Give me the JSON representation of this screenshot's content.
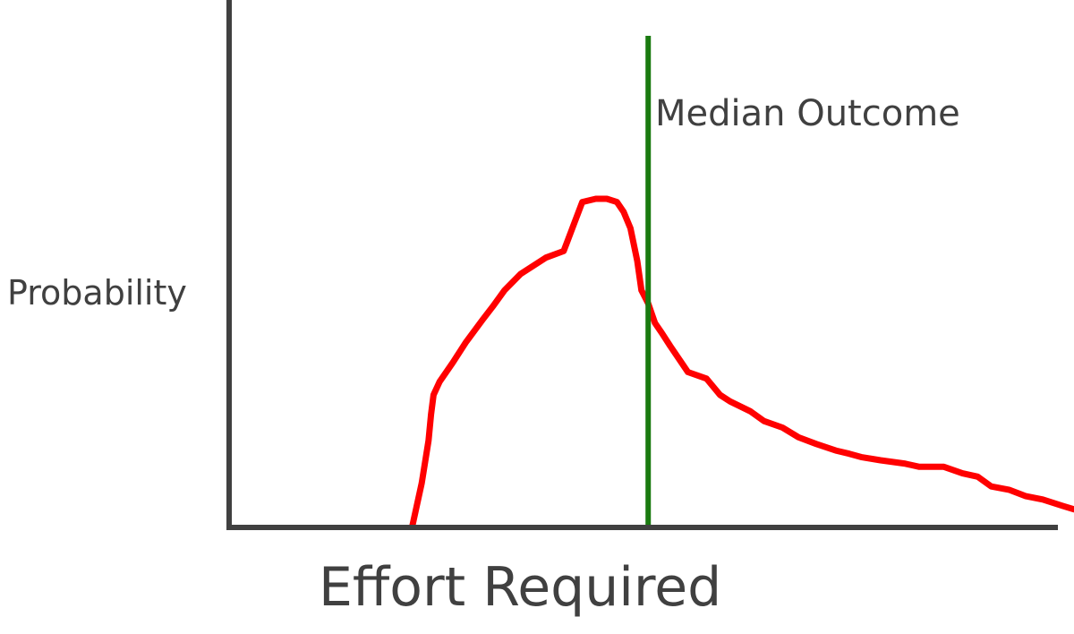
{
  "chart_data": {
    "type": "line",
    "title": "",
    "xlabel": "Effort Required",
    "ylabel": "Probability",
    "grid": false,
    "legend": "none",
    "axis_ticks": false,
    "xlim": [
      0,
      100
    ],
    "ylim": [
      0,
      100
    ],
    "series": [
      {
        "color": "#ff0000",
        "x": [
          21.7,
          22.8,
          23.6,
          23.9,
          24.2,
          24.9,
          26.5,
          28.0,
          30.0,
          31.2,
          32.6,
          34.5,
          37.5,
          39.6,
          41.8,
          43.4,
          44.7,
          45.9,
          46.7,
          47.5,
          48.3,
          48.8,
          49.6,
          50.4,
          51.2,
          52.2,
          54.3,
          56.5,
          58.1,
          59.3,
          61.7,
          63.3,
          65.5,
          67.4,
          69.5,
          71.8,
          73.4,
          74.8,
          77.1,
          79.9,
          81.7,
          84.6,
          86.8,
          88.6,
          90.2,
          92.3,
          94.3,
          96.3,
          98.7,
          100.0
        ],
        "values": [
          0,
          13,
          26,
          34,
          40,
          44,
          50,
          56,
          63,
          67,
          72,
          77,
          82,
          84,
          99,
          100,
          100,
          99,
          96,
          91,
          81,
          72,
          68,
          62,
          59,
          55,
          47,
          45,
          40,
          38,
          35,
          32,
          30,
          27,
          25,
          23,
          22,
          21,
          20,
          19,
          18,
          18,
          16,
          15,
          12,
          11,
          9,
          8,
          6,
          5
        ]
      }
    ],
    "annotations": [
      {
        "type": "vline",
        "x": 49.6,
        "color": "#1a7a10",
        "label": "Median Outcome"
      }
    ],
    "colors": {
      "axis": "#404040",
      "text": "#404040",
      "curve": "#ff0000",
      "median": "#1a7a10"
    }
  }
}
